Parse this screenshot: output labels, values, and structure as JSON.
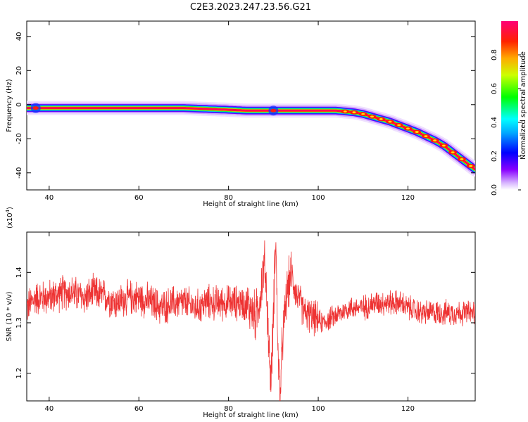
{
  "figure_title": "C2E3.2023.247.23.56.G21",
  "chart_data": [
    {
      "type": "heatmap",
      "xlabel": "Height of straight line (km)",
      "ylabel": "Frequency (Hz)",
      "xlim": [
        35,
        135
      ],
      "ylim": [
        -50,
        49
      ],
      "xticks": [
        40,
        60,
        80,
        100,
        120
      ],
      "yticks": [
        -40,
        -20,
        0,
        20,
        40
      ],
      "ridge": {
        "x": [
          35,
          40,
          50,
          60,
          70,
          75,
          80,
          84,
          90,
          95,
          100,
          104,
          106,
          108,
          110,
          112,
          114,
          116,
          118,
          120,
          122,
          124,
          126,
          128,
          130,
          132,
          134,
          135
        ],
        "y": [
          -2,
          -2,
          -2,
          -2,
          -2,
          -2.5,
          -3,
          -3.5,
          -3.5,
          -3.5,
          -3.5,
          -3.5,
          -4,
          -4.5,
          -5.5,
          -7,
          -8.5,
          -10,
          -12,
          -14,
          -16,
          -18.5,
          -21,
          -24,
          -28,
          -32,
          -36,
          -38
        ]
      },
      "colorbar": {
        "label": "Normalized spectral amplitude",
        "ticks": [
          "0.0",
          "0.2",
          "0.4",
          "0.6",
          "0.8"
        ],
        "tick_values": [
          0.0,
          0.2,
          0.4,
          0.6,
          0.8
        ],
        "range": [
          0,
          1
        ]
      }
    },
    {
      "type": "line",
      "xlabel": "Height of straight line (km)",
      "ylabel": "SNR (10 * v/v)",
      "y_multiplier": "(x10",
      "y_multiplier_exp": "4",
      "y_multiplier_close": ")",
      "xlim": [
        35,
        135
      ],
      "ylim": [
        1.145,
        1.48
      ],
      "xticks": [
        40,
        60,
        80,
        100,
        120
      ],
      "yticks": [
        1.2,
        1.3,
        1.4
      ],
      "ytick_labels": [
        "1.2",
        "1.3",
        "1.4"
      ],
      "series": [
        {
          "color": "#ee3333",
          "x": [
            35,
            37,
            40,
            43,
            45,
            48,
            50,
            53,
            55,
            58,
            60,
            63,
            65,
            68,
            70,
            73,
            75,
            78,
            80,
            83,
            85,
            86,
            87,
            88,
            88.5,
            89,
            89.5,
            90,
            90.5,
            91,
            91.5,
            92,
            93,
            94,
            95,
            97,
            99,
            101,
            103,
            105,
            107,
            110,
            113,
            115,
            118,
            120,
            123,
            125,
            128,
            130,
            133,
            135
          ],
          "y": [
            1.33,
            1.35,
            1.35,
            1.36,
            1.36,
            1.35,
            1.36,
            1.35,
            1.34,
            1.35,
            1.35,
            1.34,
            1.33,
            1.34,
            1.34,
            1.33,
            1.34,
            1.34,
            1.34,
            1.34,
            1.33,
            1.31,
            1.35,
            1.42,
            1.36,
            1.25,
            1.18,
            1.32,
            1.48,
            1.25,
            1.15,
            1.26,
            1.36,
            1.4,
            1.36,
            1.32,
            1.31,
            1.3,
            1.31,
            1.32,
            1.33,
            1.33,
            1.34,
            1.34,
            1.34,
            1.33,
            1.32,
            1.32,
            1.32,
            1.32,
            1.32,
            1.32
          ]
        }
      ]
    }
  ]
}
